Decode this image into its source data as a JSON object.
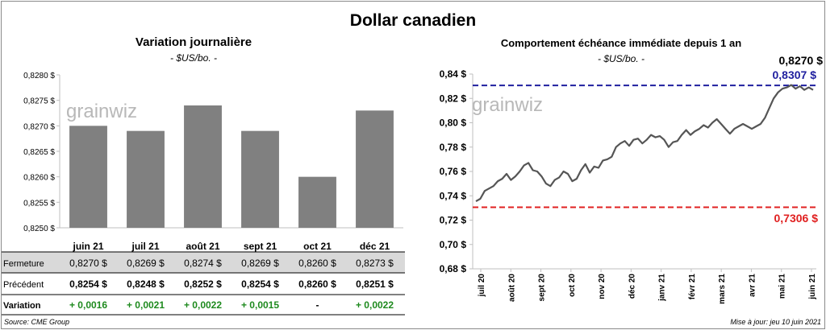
{
  "title": "Dollar canadien",
  "left_chart": {
    "title": "Variation  journalière",
    "unit": "- $US/bo. -"
  },
  "right_chart": {
    "title": "Comportement échéance immédiate depuis 1 an",
    "unit": "- $US/bo. -",
    "current_label": "0,8270 $",
    "high_label": "0,8307 $",
    "low_label": "0,7306 $"
  },
  "table": {
    "rows": [
      {
        "label": "Fermeture",
        "values": [
          "0,8270  $",
          "0,8269  $",
          "0,8274  $",
          "0,8269  $",
          "0,8260  $",
          "0,8273  $"
        ]
      },
      {
        "label": "Précédent",
        "values": [
          "0,8254  $",
          "0,8248  $",
          "0,8252  $",
          "0,8254  $",
          "0,8260  $",
          "0,8251  $"
        ]
      },
      {
        "label": "Variation",
        "values": [
          "+ 0,0016",
          "+ 0,0021",
          "+ 0,0022",
          "+ 0,0015",
          "-",
          "+ 0,0022"
        ]
      }
    ]
  },
  "watermark": "grainwiz",
  "source": "Source: CME Group",
  "updated": "Mise à jour: jeu 10 juin 2021",
  "colors": {
    "bar": "#808080",
    "line": "#555555",
    "high": "#1f1f9f",
    "low": "#e02020",
    "positive": "#1e8a1e"
  },
  "chart_data": [
    {
      "type": "bar",
      "categories": [
        "juin 21",
        "juil 21",
        "août 21",
        "sept 21",
        "oct 21",
        "déc 21"
      ],
      "values": [
        0.827,
        0.8269,
        0.8274,
        0.8269,
        0.826,
        0.8273
      ],
      "title": "Variation  journalière",
      "ylabel": "- $US/bo. -",
      "ylim": [
        0.825,
        0.828
      ],
      "yticks": [
        "0,8250 $",
        "0,8255 $",
        "0,8260 $",
        "0,8265 $",
        "0,8270 $",
        "0,8275 $",
        "0,8280 $"
      ],
      "grid": false
    },
    {
      "type": "line",
      "title": "Comportement échéance immédiate depuis 1 an",
      "ylabel": "- $US/bo. -",
      "ylim": [
        0.68,
        0.84
      ],
      "yticks": [
        "0,68 $",
        "0,70 $",
        "0,72 $",
        "0,74 $",
        "0,76 $",
        "0,78 $",
        "0,80 $",
        "0,82 $",
        "0,84 $"
      ],
      "xticks": [
        "juil 20",
        "août 20",
        "sept 20",
        "oct 20",
        "nov 20",
        "déc 20",
        "janv 21",
        "févr 21",
        "mars 21",
        "avr 21",
        "mai 21",
        "juin 21"
      ],
      "series": [
        {
          "values": [
            0.7355,
            0.7375,
            0.744,
            0.746,
            0.748,
            0.752,
            0.754,
            0.758,
            0.753,
            0.756,
            0.76,
            0.765,
            0.767,
            0.761,
            0.76,
            0.756,
            0.75,
            0.748,
            0.753,
            0.755,
            0.76,
            0.758,
            0.752,
            0.754,
            0.761,
            0.766,
            0.759,
            0.764,
            0.763,
            0.769,
            0.77,
            0.772,
            0.78,
            0.783,
            0.785,
            0.781,
            0.786,
            0.787,
            0.783,
            0.786,
            0.79,
            0.788,
            0.789,
            0.786,
            0.78,
            0.784,
            0.785,
            0.79,
            0.794,
            0.79,
            0.793,
            0.795,
            0.798,
            0.796,
            0.8,
            0.803,
            0.799,
            0.795,
            0.791,
            0.795,
            0.797,
            0.799,
            0.797,
            0.795,
            0.797,
            0.799,
            0.804,
            0.812,
            0.82,
            0.825,
            0.828,
            0.829,
            0.831,
            0.828,
            0.83,
            0.827,
            0.829,
            0.827
          ],
          "x_start": "2020-06-10",
          "x_end": "2021-06-10"
        }
      ],
      "reference_lines": [
        {
          "label": "0,8307 $",
          "value": 0.8307,
          "color": "#1f1f9f"
        },
        {
          "label": "0,7306 $",
          "value": 0.7306,
          "color": "#e02020"
        }
      ],
      "grid": false
    }
  ]
}
